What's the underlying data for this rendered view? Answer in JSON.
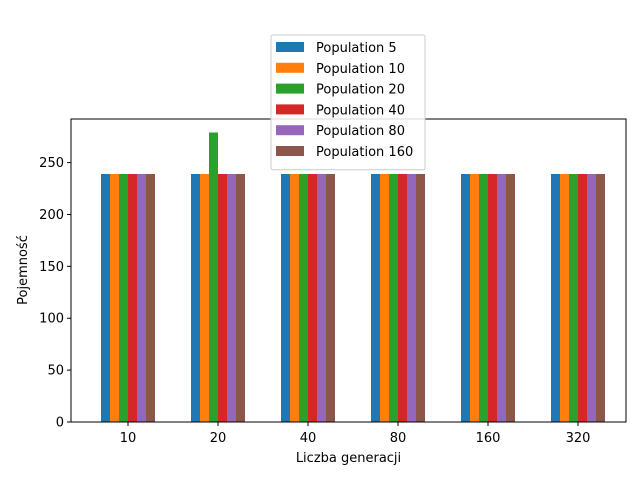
{
  "chart_data": {
    "type": "bar",
    "title": "",
    "xlabel": "Liczba generacji",
    "ylabel": "Pojemność",
    "categories": [
      "10",
      "20",
      "40",
      "80",
      "160",
      "320"
    ],
    "ylim": [
      0,
      292
    ],
    "yticks": [
      0,
      50,
      100,
      150,
      200,
      250
    ],
    "grid": false,
    "legend_position": "upper center",
    "series": [
      {
        "name": "Population 5",
        "color": "#1f77b4",
        "values": [
          239,
          239,
          239,
          239,
          239,
          239
        ]
      },
      {
        "name": "Population 10",
        "color": "#ff7f0e",
        "values": [
          239,
          239,
          239,
          239,
          239,
          239
        ]
      },
      {
        "name": "Population 20",
        "color": "#2ca02c",
        "values": [
          239,
          279,
          239,
          239,
          239,
          239
        ]
      },
      {
        "name": "Population 40",
        "color": "#d62728",
        "values": [
          239,
          239,
          239,
          239,
          239,
          239
        ]
      },
      {
        "name": "Population 80",
        "color": "#9467bd",
        "values": [
          239,
          239,
          239,
          239,
          239,
          239
        ]
      },
      {
        "name": "Population 160",
        "color": "#8c564b",
        "values": [
          239,
          239,
          239,
          239,
          239,
          239
        ]
      }
    ]
  }
}
